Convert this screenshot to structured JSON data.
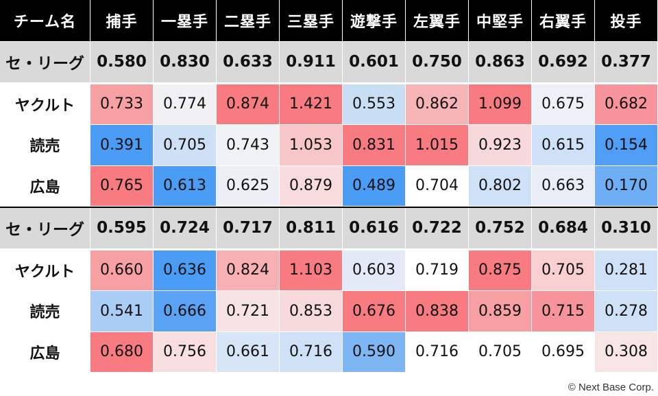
{
  "header": {
    "team_label": "チーム名",
    "positions": [
      "捕手",
      "一塁手",
      "二塁手",
      "三塁手",
      "遊撃手",
      "左翼手",
      "中堅手",
      "右翼手",
      "投手"
    ]
  },
  "sections": [
    {
      "league": {
        "name": "セ・リーグ",
        "values": [
          "0.580",
          "0.830",
          "0.633",
          "0.911",
          "0.601",
          "0.750",
          "0.863",
          "0.692",
          "0.377"
        ]
      },
      "teams": [
        {
          "name": "ヤクルト",
          "values": [
            "0.733",
            "0.774",
            "0.874",
            "1.421",
            "0.553",
            "0.862",
            "1.099",
            "0.675",
            "0.682"
          ],
          "colors": [
            "#f7a0a3",
            "#f1f1f4",
            "#f77b80",
            "#f77b80",
            "#c9def5",
            "#f7b4b6",
            "#f77b80",
            "#edf0f6",
            "#f7939a"
          ]
        },
        {
          "name": "読売",
          "values": [
            "0.391",
            "0.705",
            "0.743",
            "1.053",
            "0.831",
            "1.015",
            "0.923",
            "0.615",
            "0.154"
          ],
          "colors": [
            "#4b9cf4",
            "#cde0f6",
            "#f1f2f6",
            "#f7c6c8",
            "#f77b80",
            "#f77b80",
            "#f7d9db",
            "#cfe1f6",
            "#4f9df4"
          ]
        },
        {
          "name": "広島",
          "values": [
            "0.765",
            "0.613",
            "0.625",
            "0.879",
            "0.489",
            "0.704",
            "0.802",
            "0.663",
            "0.170"
          ],
          "colors": [
            "#f77b80",
            "#4b9cf4",
            "#ecf0f6",
            "#f8dcdd",
            "#4b9cf4",
            "#ffffff",
            "#cfe1f6",
            "#e9eef6",
            "#6eaef4"
          ]
        }
      ]
    },
    {
      "league": {
        "name": "セ・リーグ",
        "values": [
          "0.595",
          "0.724",
          "0.717",
          "0.811",
          "0.616",
          "0.722",
          "0.752",
          "0.684",
          "0.310"
        ]
      },
      "teams": [
        {
          "name": "ヤクルト",
          "values": [
            "0.660",
            "0.636",
            "0.824",
            "1.103",
            "0.603",
            "0.719",
            "0.875",
            "0.705",
            "0.281"
          ],
          "colors": [
            "#f7a0a3",
            "#4b9cf4",
            "#f7b0b3",
            "#f77b80",
            "#e1eaf6",
            "#ffffff",
            "#f77b80",
            "#f7cfd1",
            "#cfe1f6"
          ]
        },
        {
          "name": "読売",
          "values": [
            "0.541",
            "0.666",
            "0.721",
            "0.853",
            "0.676",
            "0.838",
            "0.859",
            "0.715",
            "0.278"
          ],
          "colors": [
            "#a9cdf4",
            "#5aa3f4",
            "#f7e3e4",
            "#f7dadb",
            "#f77b80",
            "#f77b80",
            "#f7a0a3",
            "#f7939a",
            "#cfe1f6"
          ]
        },
        {
          "name": "広島",
          "values": [
            "0.680",
            "0.756",
            "0.661",
            "0.716",
            "0.590",
            "0.716",
            "0.705",
            "0.695",
            "0.308"
          ],
          "colors": [
            "#f77b80",
            "#f7dfe0",
            "#d6e6f6",
            "#cfe1f6",
            "#7eb6f4",
            "#ffffff",
            "#ffffff",
            "#ffffff",
            "#f7e4e5"
          ]
        }
      ]
    }
  ],
  "footer": {
    "copyright": "© Next Base Corp."
  }
}
